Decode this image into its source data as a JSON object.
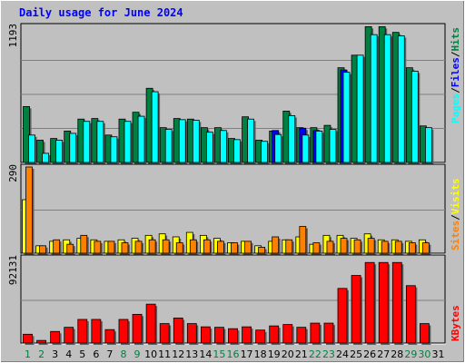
{
  "title": "Daily usage for June 2024",
  "chart_data": [
    {
      "type": "bar",
      "panel": "pages_files_hits",
      "categories": [
        "1",
        "2",
        "3",
        "4",
        "5",
        "6",
        "7",
        "8",
        "9",
        "10",
        "11",
        "12",
        "13",
        "14",
        "15",
        "16",
        "17",
        "18",
        "19",
        "20",
        "21",
        "22",
        "23",
        "24",
        "25",
        "26",
        "27",
        "28",
        "29",
        "30",
        "31"
      ],
      "ymax_label": "1193",
      "ylim": [
        0,
        1193
      ],
      "legend": [
        "Pages",
        "Files",
        "Hits"
      ],
      "series": [
        {
          "name": "Hits",
          "color": "#008040",
          "values": [
            490,
            195,
            210,
            275,
            380,
            385,
            240,
            380,
            440,
            650,
            305,
            385,
            380,
            305,
            305,
            210,
            400,
            195,
            275,
            450,
            305,
            305,
            325,
            830,
            940,
            1190,
            1190,
            1140,
            830,
            320,
            0
          ]
        },
        {
          "name": "Files",
          "color": "#0000ff",
          "values": [
            0,
            0,
            0,
            0,
            0,
            0,
            0,
            0,
            0,
            0,
            0,
            0,
            0,
            0,
            0,
            0,
            0,
            0,
            280,
            0,
            300,
            280,
            0,
            810,
            0,
            0,
            0,
            0,
            0,
            0,
            0
          ]
        },
        {
          "name": "Pages",
          "color": "#00ffff",
          "values": [
            240,
            80,
            195,
            255,
            360,
            360,
            225,
            360,
            405,
            620,
            290,
            375,
            370,
            265,
            280,
            200,
            380,
            185,
            245,
            410,
            240,
            275,
            290,
            790,
            940,
            1120,
            1120,
            1110,
            800,
            305,
            0
          ]
        }
      ]
    },
    {
      "type": "bar",
      "panel": "sites_visits",
      "categories": [
        "1",
        "2",
        "3",
        "4",
        "5",
        "6",
        "7",
        "8",
        "9",
        "10",
        "11",
        "12",
        "13",
        "14",
        "15",
        "16",
        "17",
        "18",
        "19",
        "20",
        "21",
        "22",
        "23",
        "24",
        "25",
        "26",
        "27",
        "28",
        "29",
        "30",
        "31"
      ],
      "ymax_label": "290",
      "ylim": [
        0,
        290
      ],
      "legend": [
        "Sites",
        "Visits"
      ],
      "series": [
        {
          "name": "Visits",
          "color": "#ffff00",
          "values": [
            180,
            25,
            40,
            45,
            50,
            45,
            40,
            45,
            50,
            60,
            65,
            55,
            70,
            60,
            50,
            35,
            40,
            25,
            40,
            45,
            55,
            30,
            60,
            60,
            50,
            65,
            45,
            45,
            40,
            45,
            0
          ]
        },
        {
          "name": "Sites",
          "color": "#ff8000",
          "values": [
            290,
            25,
            45,
            30,
            60,
            40,
            40,
            35,
            40,
            45,
            45,
            35,
            45,
            45,
            40,
            35,
            40,
            20,
            55,
            45,
            90,
            35,
            40,
            50,
            45,
            50,
            40,
            40,
            35,
            35,
            0
          ]
        }
      ]
    },
    {
      "type": "bar",
      "panel": "kbytes",
      "categories": [
        "1",
        "2",
        "3",
        "4",
        "5",
        "6",
        "7",
        "8",
        "9",
        "10",
        "11",
        "12",
        "13",
        "14",
        "15",
        "16",
        "17",
        "18",
        "19",
        "20",
        "21",
        "22",
        "23",
        "24",
        "25",
        "26",
        "27",
        "28",
        "29",
        "30",
        "31"
      ],
      "ymax_label": "92131",
      "ylim": [
        0,
        92131
      ],
      "legend": [
        "KBytes"
      ],
      "series": [
        {
          "name": "KBytes",
          "color": "#ff0000",
          "values": [
            9500,
            2800,
            12500,
            17000,
            25500,
            25500,
            14500,
            25500,
            31000,
            42000,
            21000,
            27000,
            21000,
            17500,
            17000,
            15500,
            17500,
            14000,
            18500,
            20000,
            17000,
            21500,
            21500,
            59000,
            73000,
            87000,
            87000,
            87000,
            62000,
            21000,
            0
          ]
        }
      ]
    }
  ],
  "day_label_colors": {
    "weekday": "#000000",
    "weekend": "#008040"
  },
  "weekend_days": [
    "1",
    "2",
    "8",
    "9",
    "15",
    "16",
    "22",
    "23",
    "29",
    "30"
  ]
}
